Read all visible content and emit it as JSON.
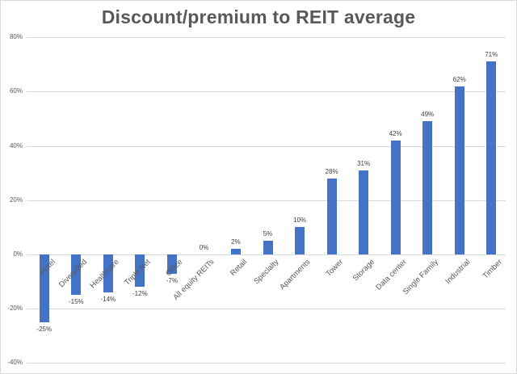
{
  "chart_data": {
    "type": "bar",
    "title": "Discount/premium to REIT average",
    "xlabel": "",
    "ylabel": "",
    "ylim": [
      -40,
      80
    ],
    "yticks": [
      "80%",
      "60%",
      "40%",
      "20%",
      "0%",
      "-20%",
      "-40%"
    ],
    "ytick_values": [
      80,
      60,
      40,
      20,
      0,
      -20,
      -40
    ],
    "grid": true,
    "legend": null,
    "bar_color": "#4472c4",
    "categories": [
      "Hotel",
      "Diversified",
      "Healthcare",
      "Triple Net",
      "Office",
      "All equity REITs",
      "Retail",
      "Specialty",
      "Apartments",
      "Tower",
      "Storage",
      "Data center",
      "Single Family",
      "Industrial",
      "Timber"
    ],
    "values": [
      -25,
      -15,
      -14,
      -12,
      -7,
      0,
      2,
      5,
      10,
      28,
      31,
      42,
      49,
      62,
      71
    ],
    "value_labels": [
      "-25%",
      "-15%",
      "-14%",
      "-12%",
      "-7%",
      "0%",
      "2%",
      "5%",
      "10%",
      "28%",
      "31%",
      "42%",
      "49%",
      "62%",
      "71%"
    ]
  }
}
